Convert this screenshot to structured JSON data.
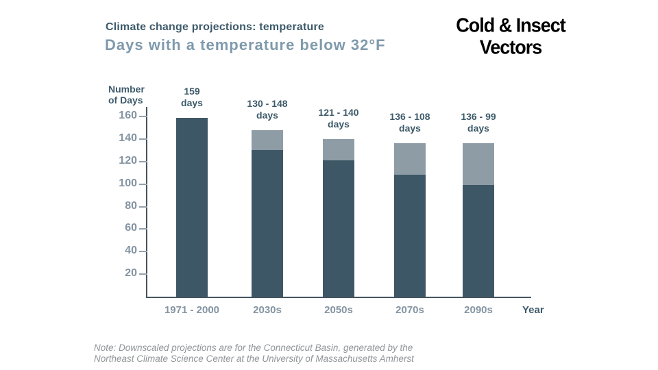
{
  "header": {
    "title": "Climate change projections: temperature",
    "subtitle": "Days with a temperature below 32°F",
    "corner_label_line1": "Cold & Insect",
    "corner_label_line2": "Vectors"
  },
  "chart_data": {
    "type": "bar",
    "title": "Days with a temperature below 32°F",
    "ylabel_line1": "Number",
    "ylabel_line2": "of Days",
    "xlabel": "Year",
    "ylim": [
      0,
      170
    ],
    "yticks": [
      20,
      40,
      60,
      80,
      100,
      120,
      140,
      160
    ],
    "grid": false,
    "legend": false,
    "categories": [
      "1971 - 2000",
      "2030s",
      "2050s",
      "2070s",
      "2090s"
    ],
    "series": [
      {
        "name": "lower projection (dark)",
        "color_key": "bar-dark",
        "values": [
          159,
          130,
          121,
          108,
          99
        ]
      },
      {
        "name": "upper projection (light)",
        "color_key": "bar-light",
        "values": [
          159,
          148,
          140,
          136,
          136
        ]
      }
    ],
    "bar_labels": [
      {
        "line1": "159",
        "line2": "days"
      },
      {
        "line1": "130 - 148",
        "line2": "days"
      },
      {
        "line1": "121 - 140",
        "line2": "days"
      },
      {
        "line1": "136 - 108",
        "line2": "days"
      },
      {
        "line1": "136 - 99",
        "line2": "days"
      }
    ]
  },
  "note": {
    "line1": "Note: Downscaled projections are for the Connecticut Basin, generated by the",
    "line2": "Northeast Climate Science Center at the University of Massachusetts Amherst"
  },
  "colors": {
    "dark-text": "#3d5a6a",
    "subtitle": "#7f9aac",
    "bar-dark": "#3e5766",
    "bar-light": "#8e9ca6",
    "axis": "#45555f",
    "tick-mark": "#93a1ab",
    "light-text": "#8494a2",
    "note": "#8f9497",
    "corner": "#000000"
  }
}
